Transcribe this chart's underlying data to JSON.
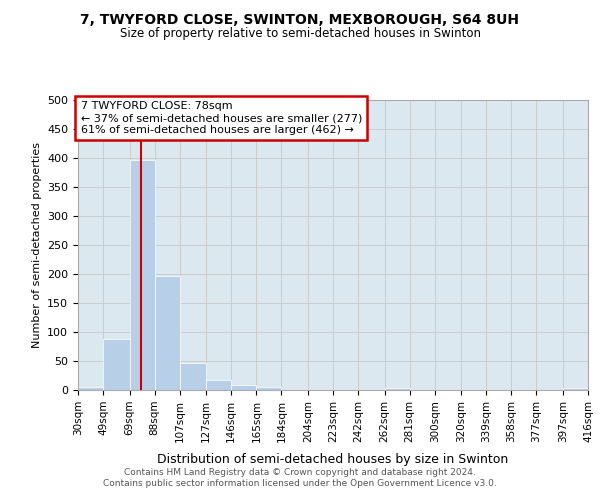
{
  "title": "7, TWYFORD CLOSE, SWINTON, MEXBOROUGH, S64 8UH",
  "subtitle": "Size of property relative to semi-detached houses in Swinton",
  "xlabel": "Distribution of semi-detached houses by size in Swinton",
  "ylabel": "Number of semi-detached properties",
  "footer_line1": "Contains HM Land Registry data © Crown copyright and database right 2024.",
  "footer_line2": "Contains public sector information licensed under the Open Government Licence v3.0.",
  "annotation_title": "7 TWYFORD CLOSE: 78sqm",
  "annotation_line1": "← 37% of semi-detached houses are smaller (277)",
  "annotation_line2": "61% of semi-detached houses are larger (462) →",
  "property_size": 78,
  "bar_edges": [
    30,
    49,
    69,
    88,
    107,
    127,
    146,
    165,
    184,
    204,
    223,
    242,
    262,
    281,
    300,
    320,
    339,
    358,
    377,
    397,
    416
  ],
  "bar_heights": [
    5,
    88,
    397,
    197,
    47,
    18,
    8,
    5,
    0,
    0,
    0,
    0,
    4,
    0,
    0,
    0,
    0,
    0,
    0,
    4
  ],
  "bar_color": "#b8cfe8",
  "vline_color": "#cc0000",
  "vline_x": 78,
  "grid_color": "#cccccc",
  "plot_bg_color": "#dce8f0",
  "background_color": "#ffffff",
  "ylim": [
    0,
    500
  ],
  "yticks": [
    0,
    50,
    100,
    150,
    200,
    250,
    300,
    350,
    400,
    450,
    500
  ],
  "tick_labels": [
    "30sqm",
    "49sqm",
    "69sqm",
    "88sqm",
    "107sqm",
    "127sqm",
    "146sqm",
    "165sqm",
    "184sqm",
    "204sqm",
    "223sqm",
    "242sqm",
    "262sqm",
    "281sqm",
    "300sqm",
    "320sqm",
    "339sqm",
    "358sqm",
    "377sqm",
    "397sqm",
    "416sqm"
  ]
}
